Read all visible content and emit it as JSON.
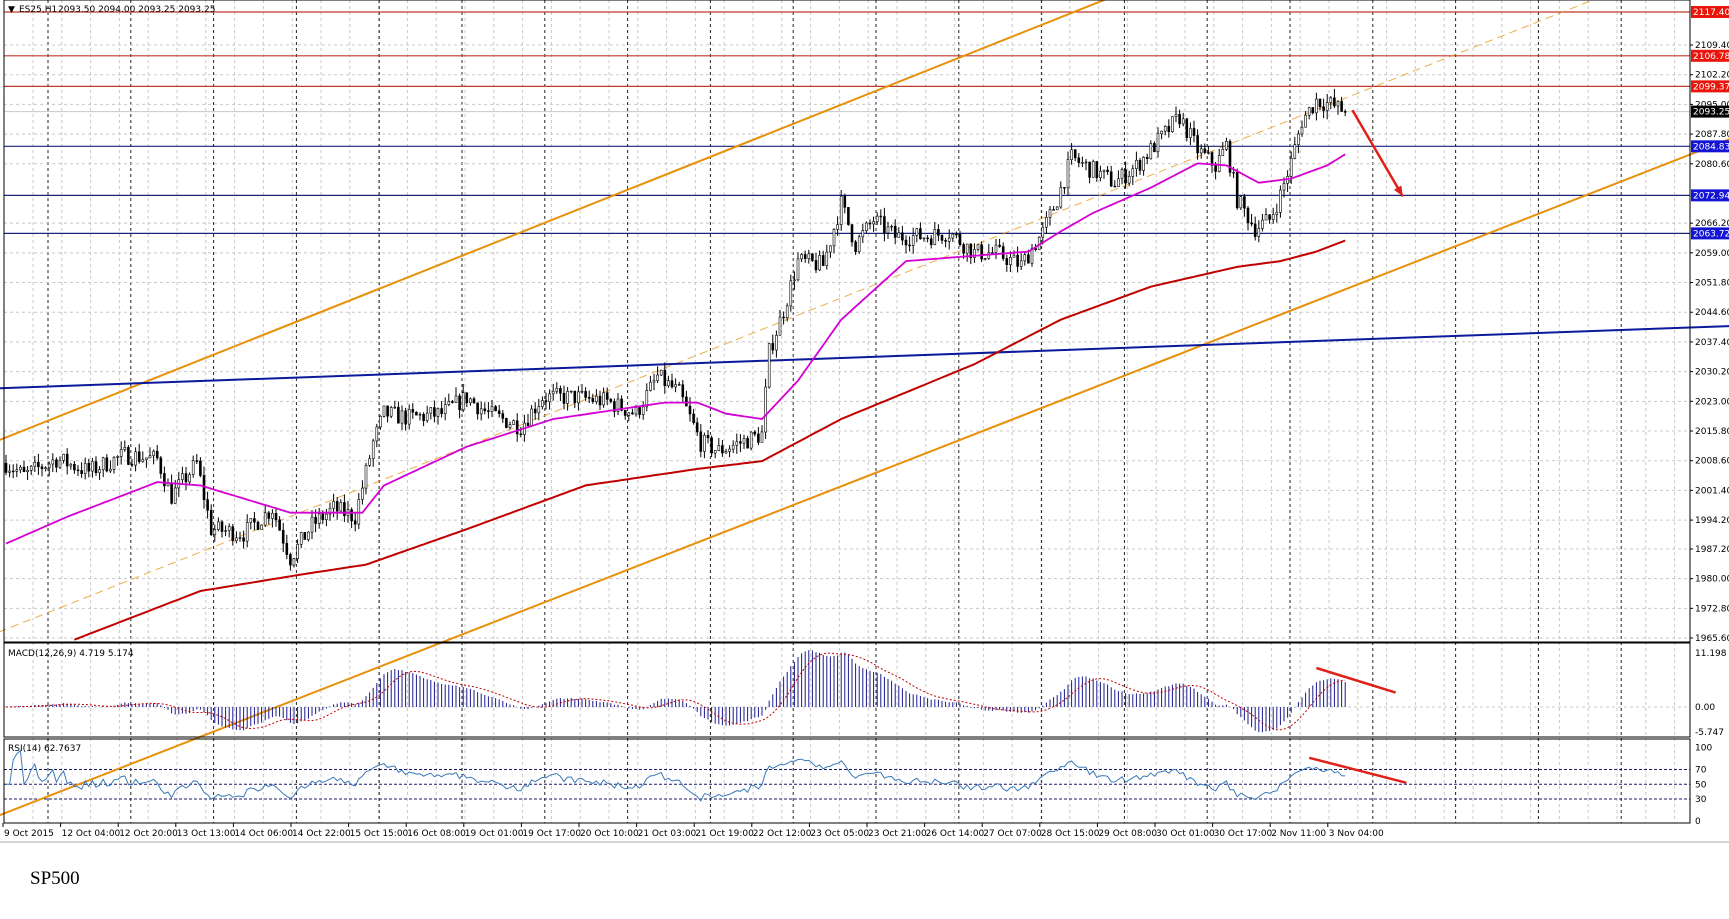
{
  "header": {
    "symbol": "ES25,H1",
    "ohlc": "2093.50 2094.00 2093.25 2093.25"
  },
  "caption": "SP500",
  "colors": {
    "bull_bear": "#000000",
    "ma_fast": "#d400d4",
    "ma_slow": "#c00000",
    "channel": "#e8900a",
    "blue_line": "#0a1a9a",
    "resistance": "#c0392b",
    "support": "#1a237e",
    "arrow": "#e0201a",
    "macd_hist": "#1a1a8a",
    "rsi_line": "#3a7ab8"
  },
  "chart_data": {
    "type": "candlestick",
    "title": "ES25,H1",
    "timeframe": "H1",
    "x_tick_labels": [
      "9 Oct 2015",
      "12 Oct 04:00",
      "12 Oct 20:00",
      "13 Oct 13:00",
      "14 Oct 06:00",
      "14 Oct 22:00",
      "15 Oct 15:00",
      "16 Oct 08:00",
      "19 Oct 01:00",
      "19 Oct 17:00",
      "20 Oct 10:00",
      "21 Oct 03:00",
      "21 Oct 19:00",
      "22 Oct 12:00",
      "23 Oct 05:00",
      "23 Oct 21:00",
      "26 Oct 14:00",
      "27 Oct 07:00",
      "28 Oct 15:00",
      "29 Oct 08:00",
      "30 Oct 01:00",
      "30 Oct 17:00",
      "2 Nov 11:00",
      "3 Nov 04:00"
    ],
    "bars_per_x_tick": 16,
    "y_tick_labels": [
      "2109.40",
      "2102.20",
      "2095.00",
      "2087.80",
      "2080.60",
      "2066.20",
      "2059.00",
      "2051.80",
      "2044.60",
      "2037.40",
      "2030.20",
      "2023.00",
      "2015.80",
      "2008.60",
      "2001.40",
      "1994.20",
      "1987.20",
      "1980.00",
      "1972.80",
      "1965.60"
    ],
    "ylim": [
      1964.9,
      2120.3
    ],
    "price_close_path": [
      [
        0,
        2008
      ],
      [
        5,
        2005
      ],
      [
        14,
        2009
      ],
      [
        23,
        2006
      ],
      [
        33,
        2010
      ],
      [
        42,
        2009
      ],
      [
        46,
        2000
      ],
      [
        53,
        2008
      ],
      [
        57,
        1992
      ],
      [
        66,
        1991
      ],
      [
        74,
        1997
      ],
      [
        79,
        1985
      ],
      [
        85,
        1993
      ],
      [
        91,
        1997
      ],
      [
        97,
        1995
      ],
      [
        102,
        2013
      ],
      [
        105,
        2020
      ],
      [
        112,
        2019
      ],
      [
        121,
        2020
      ],
      [
        128,
        2024
      ],
      [
        134,
        2020
      ],
      [
        143,
        2017
      ],
      [
        149,
        2024
      ],
      [
        158,
        2024
      ],
      [
        167,
        2023
      ],
      [
        175,
        2020
      ],
      [
        181,
        2029
      ],
      [
        187,
        2025
      ],
      [
        193,
        2013
      ],
      [
        198,
        2011
      ],
      [
        204,
        2013
      ],
      [
        210,
        2015
      ],
      [
        212,
        2035
      ],
      [
        216,
        2045
      ],
      [
        220,
        2057
      ],
      [
        227,
        2056
      ],
      [
        232,
        2071
      ],
      [
        236,
        2061
      ],
      [
        241,
        2067
      ],
      [
        247,
        2063
      ],
      [
        256,
        2063
      ],
      [
        262,
        2064
      ],
      [
        269,
        2059
      ],
      [
        275,
        2059
      ],
      [
        282,
        2056
      ],
      [
        288,
        2064
      ],
      [
        292,
        2072
      ],
      [
        296,
        2082
      ],
      [
        302,
        2079
      ],
      [
        308,
        2076
      ],
      [
        314,
        2080
      ],
      [
        321,
        2087
      ],
      [
        326,
        2092
      ],
      [
        331,
        2084
      ],
      [
        336,
        2080
      ],
      [
        339,
        2085
      ],
      [
        342,
        2072
      ],
      [
        347,
        2065
      ],
      [
        351,
        2067
      ],
      [
        354,
        2073
      ],
      [
        357,
        2081
      ],
      [
        360,
        2091
      ],
      [
        364,
        2096
      ],
      [
        368,
        2095
      ],
      [
        372,
        2093.25
      ]
    ],
    "ma_fast_path": [
      [
        0,
        1988.5
      ],
      [
        17,
        1995
      ],
      [
        42,
        2003.4
      ],
      [
        54,
        2002.6
      ],
      [
        79,
        1996
      ],
      [
        99,
        1996
      ],
      [
        105,
        2002.6
      ],
      [
        128,
        2012
      ],
      [
        152,
        2018.7
      ],
      [
        183,
        2022.7
      ],
      [
        192,
        2022.7
      ],
      [
        200,
        2020
      ],
      [
        210,
        2018.7
      ],
      [
        220,
        2028
      ],
      [
        232,
        2042.8
      ],
      [
        250,
        2057
      ],
      [
        269,
        2058.3
      ],
      [
        284,
        2059.3
      ],
      [
        293,
        2064.2
      ],
      [
        302,
        2068.7
      ],
      [
        318,
        2074.8
      ],
      [
        331,
        2080.7
      ],
      [
        339,
        2080.2
      ],
      [
        348,
        2076
      ],
      [
        357,
        2077
      ],
      [
        367,
        2080.2
      ],
      [
        372,
        2082.9
      ]
    ],
    "ma_slow_path": [
      [
        19,
        1965.2
      ],
      [
        54,
        1977
      ],
      [
        82,
        1981
      ],
      [
        100,
        1983.4
      ],
      [
        128,
        1992
      ],
      [
        161,
        2002.6
      ],
      [
        192,
        2006.6
      ],
      [
        210,
        2008.5
      ],
      [
        232,
        2018.7
      ],
      [
        269,
        2032
      ],
      [
        293,
        2042.8
      ],
      [
        318,
        2050.8
      ],
      [
        342,
        2055.6
      ],
      [
        354,
        2057
      ],
      [
        364,
        2059.3
      ],
      [
        372,
        2062
      ]
    ],
    "horizontal_levels": [
      {
        "price": "2117.40",
        "kind": "resistance"
      },
      {
        "price": "2106.78",
        "kind": "resistance"
      },
      {
        "price": "2099.37",
        "kind": "resistance"
      },
      {
        "price": "2084.83",
        "kind": "support"
      },
      {
        "price": "2072.94",
        "kind": "support"
      },
      {
        "price": "2063.72",
        "kind": "support"
      }
    ],
    "current_price": "2093.25",
    "trendlines": [
      {
        "name": "channel-upper",
        "style": "solid",
        "color": "channel",
        "p1": [
          -1,
          2013.9
        ],
        "p2": [
          305,
          2120.3
        ]
      },
      {
        "name": "channel-lower",
        "style": "solid",
        "color": "channel",
        "p1": [
          123,
          1965.2
        ],
        "p2": [
          468,
          2082.9
        ]
      },
      {
        "name": "channel-mid",
        "style": "dashed",
        "color": "channel",
        "p1": [
          -1,
          1967.4
        ],
        "p2": [
          437,
          2119
        ]
      },
      {
        "name": "blue-trendline",
        "style": "solid",
        "color": "blue_line",
        "p1": [
          -1,
          2026.2
        ],
        "p2": [
          468,
          2040.9
        ]
      }
    ],
    "arrow": {
      "from": [
        374,
        2093.6
      ],
      "to": [
        388,
        2072.7
      ]
    },
    "macd": {
      "label": "MACD(12,26,9) 4.719 5.174",
      "params": [
        12,
        26,
        9
      ],
      "y_tick_labels": [
        "11.198",
        "0.00",
        "-5.747"
      ],
      "ylim": [
        -5.747,
        11.198
      ],
      "divergence_line": {
        "from": [
          364,
          7.4
        ],
        "to": [
          386,
          2.75
        ]
      }
    },
    "rsi": {
      "label": "RSI(14) 62.7637",
      "period": 14,
      "y_tick_labels": [
        "100",
        "70",
        "50",
        "30",
        "0"
      ],
      "levels": [
        70,
        50,
        30
      ],
      "divergence_line": {
        "from": [
          362,
          86
        ],
        "to": [
          389,
          52
        ]
      }
    }
  }
}
